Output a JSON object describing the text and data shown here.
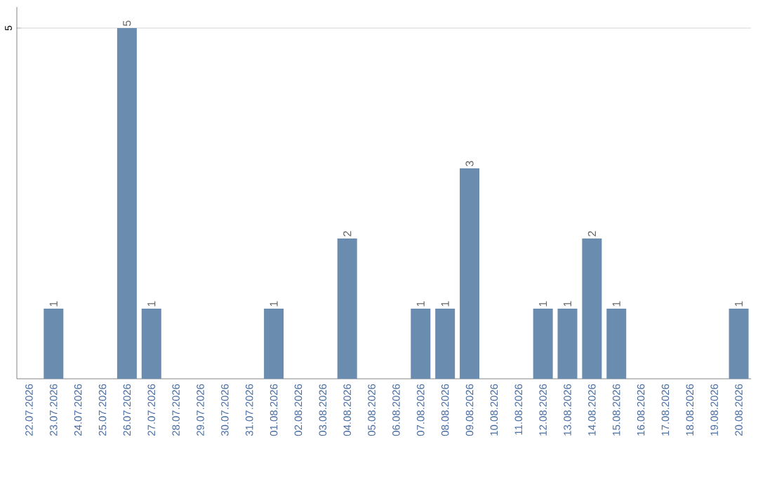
{
  "chart_data": {
    "type": "bar",
    "categories": [
      "22.07.2026",
      "23.07.2026",
      "24.07.2026",
      "25.07.2026",
      "26.07.2026",
      "27.07.2026",
      "28.07.2026",
      "29.07.2026",
      "30.07.2026",
      "31.07.2026",
      "01.08.2026",
      "02.08.2026",
      "03.08.2026",
      "04.08.2026",
      "05.08.2026",
      "06.08.2026",
      "07.08.2026",
      "08.08.2026",
      "09.08.2026",
      "10.08.2026",
      "11.08.2026",
      "12.08.2026",
      "13.08.2026",
      "14.08.2026",
      "15.08.2026",
      "16.08.2026",
      "17.08.2026",
      "18.08.2026",
      "19.08.2026",
      "20.08.2026"
    ],
    "values": [
      0,
      1,
      0,
      0,
      5,
      1,
      0,
      0,
      0,
      0,
      1,
      0,
      0,
      2,
      0,
      0,
      1,
      1,
      3,
      0,
      0,
      1,
      1,
      2,
      1,
      0,
      0,
      0,
      0,
      1
    ],
    "value_labels": [
      null,
      "1",
      null,
      null,
      "5",
      "1",
      null,
      null,
      null,
      null,
      "1",
      null,
      null,
      "2",
      null,
      null,
      "1",
      "1",
      "3",
      null,
      null,
      "1",
      "1",
      "2",
      "1",
      null,
      null,
      null,
      null,
      "1"
    ],
    "color": "#6a8caf",
    "ylim": [
      0,
      5.3
    ],
    "yticks": [
      5
    ],
    "grid": "y"
  }
}
